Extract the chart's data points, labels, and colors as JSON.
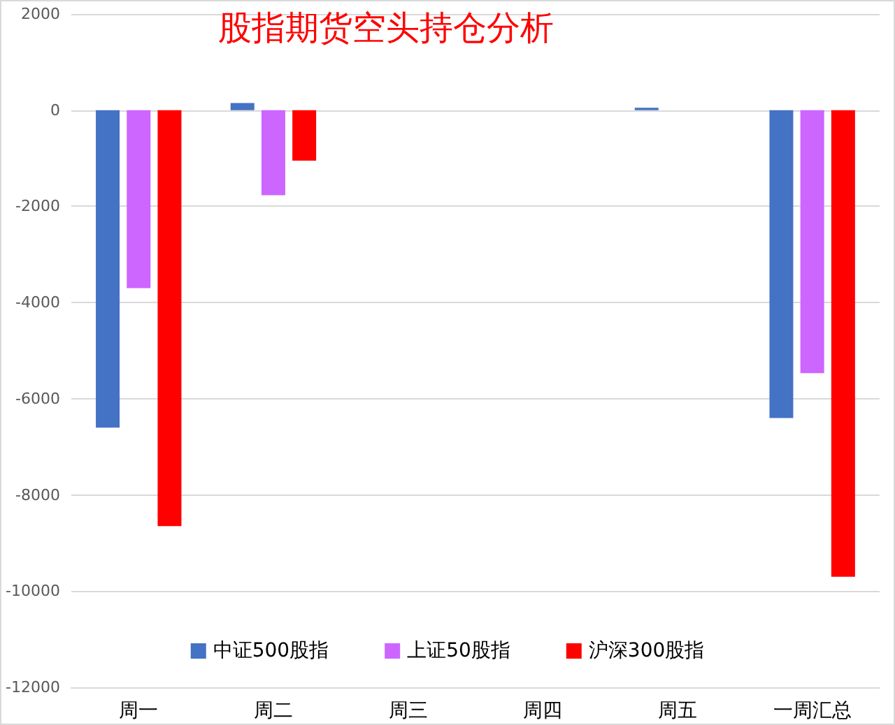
{
  "chart_data": {
    "type": "bar",
    "title": "股指期货空头持仓分析",
    "categories": [
      "周一",
      "周二",
      "周三",
      "周四",
      "周五",
      "一周汇总"
    ],
    "series": [
      {
        "name": "中证500股指",
        "color": "#4472c4",
        "values": [
          -6600,
          150,
          0,
          0,
          50,
          -6400
        ]
      },
      {
        "name": "上证50股指",
        "color": "#cc66ff",
        "values": [
          -3700,
          -1770,
          0,
          0,
          0,
          -5470
        ]
      },
      {
        "name": "沪深300股指",
        "color": "#ff0000",
        "values": [
          -8650,
          -1050,
          0,
          0,
          0,
          -9700
        ]
      }
    ],
    "ylim": [
      -12000,
      2000
    ],
    "yticks": [
      -12000,
      -10000,
      -8000,
      -6000,
      -4000,
      -2000,
      0,
      2000
    ],
    "grid": "y",
    "legend": "bottom"
  }
}
